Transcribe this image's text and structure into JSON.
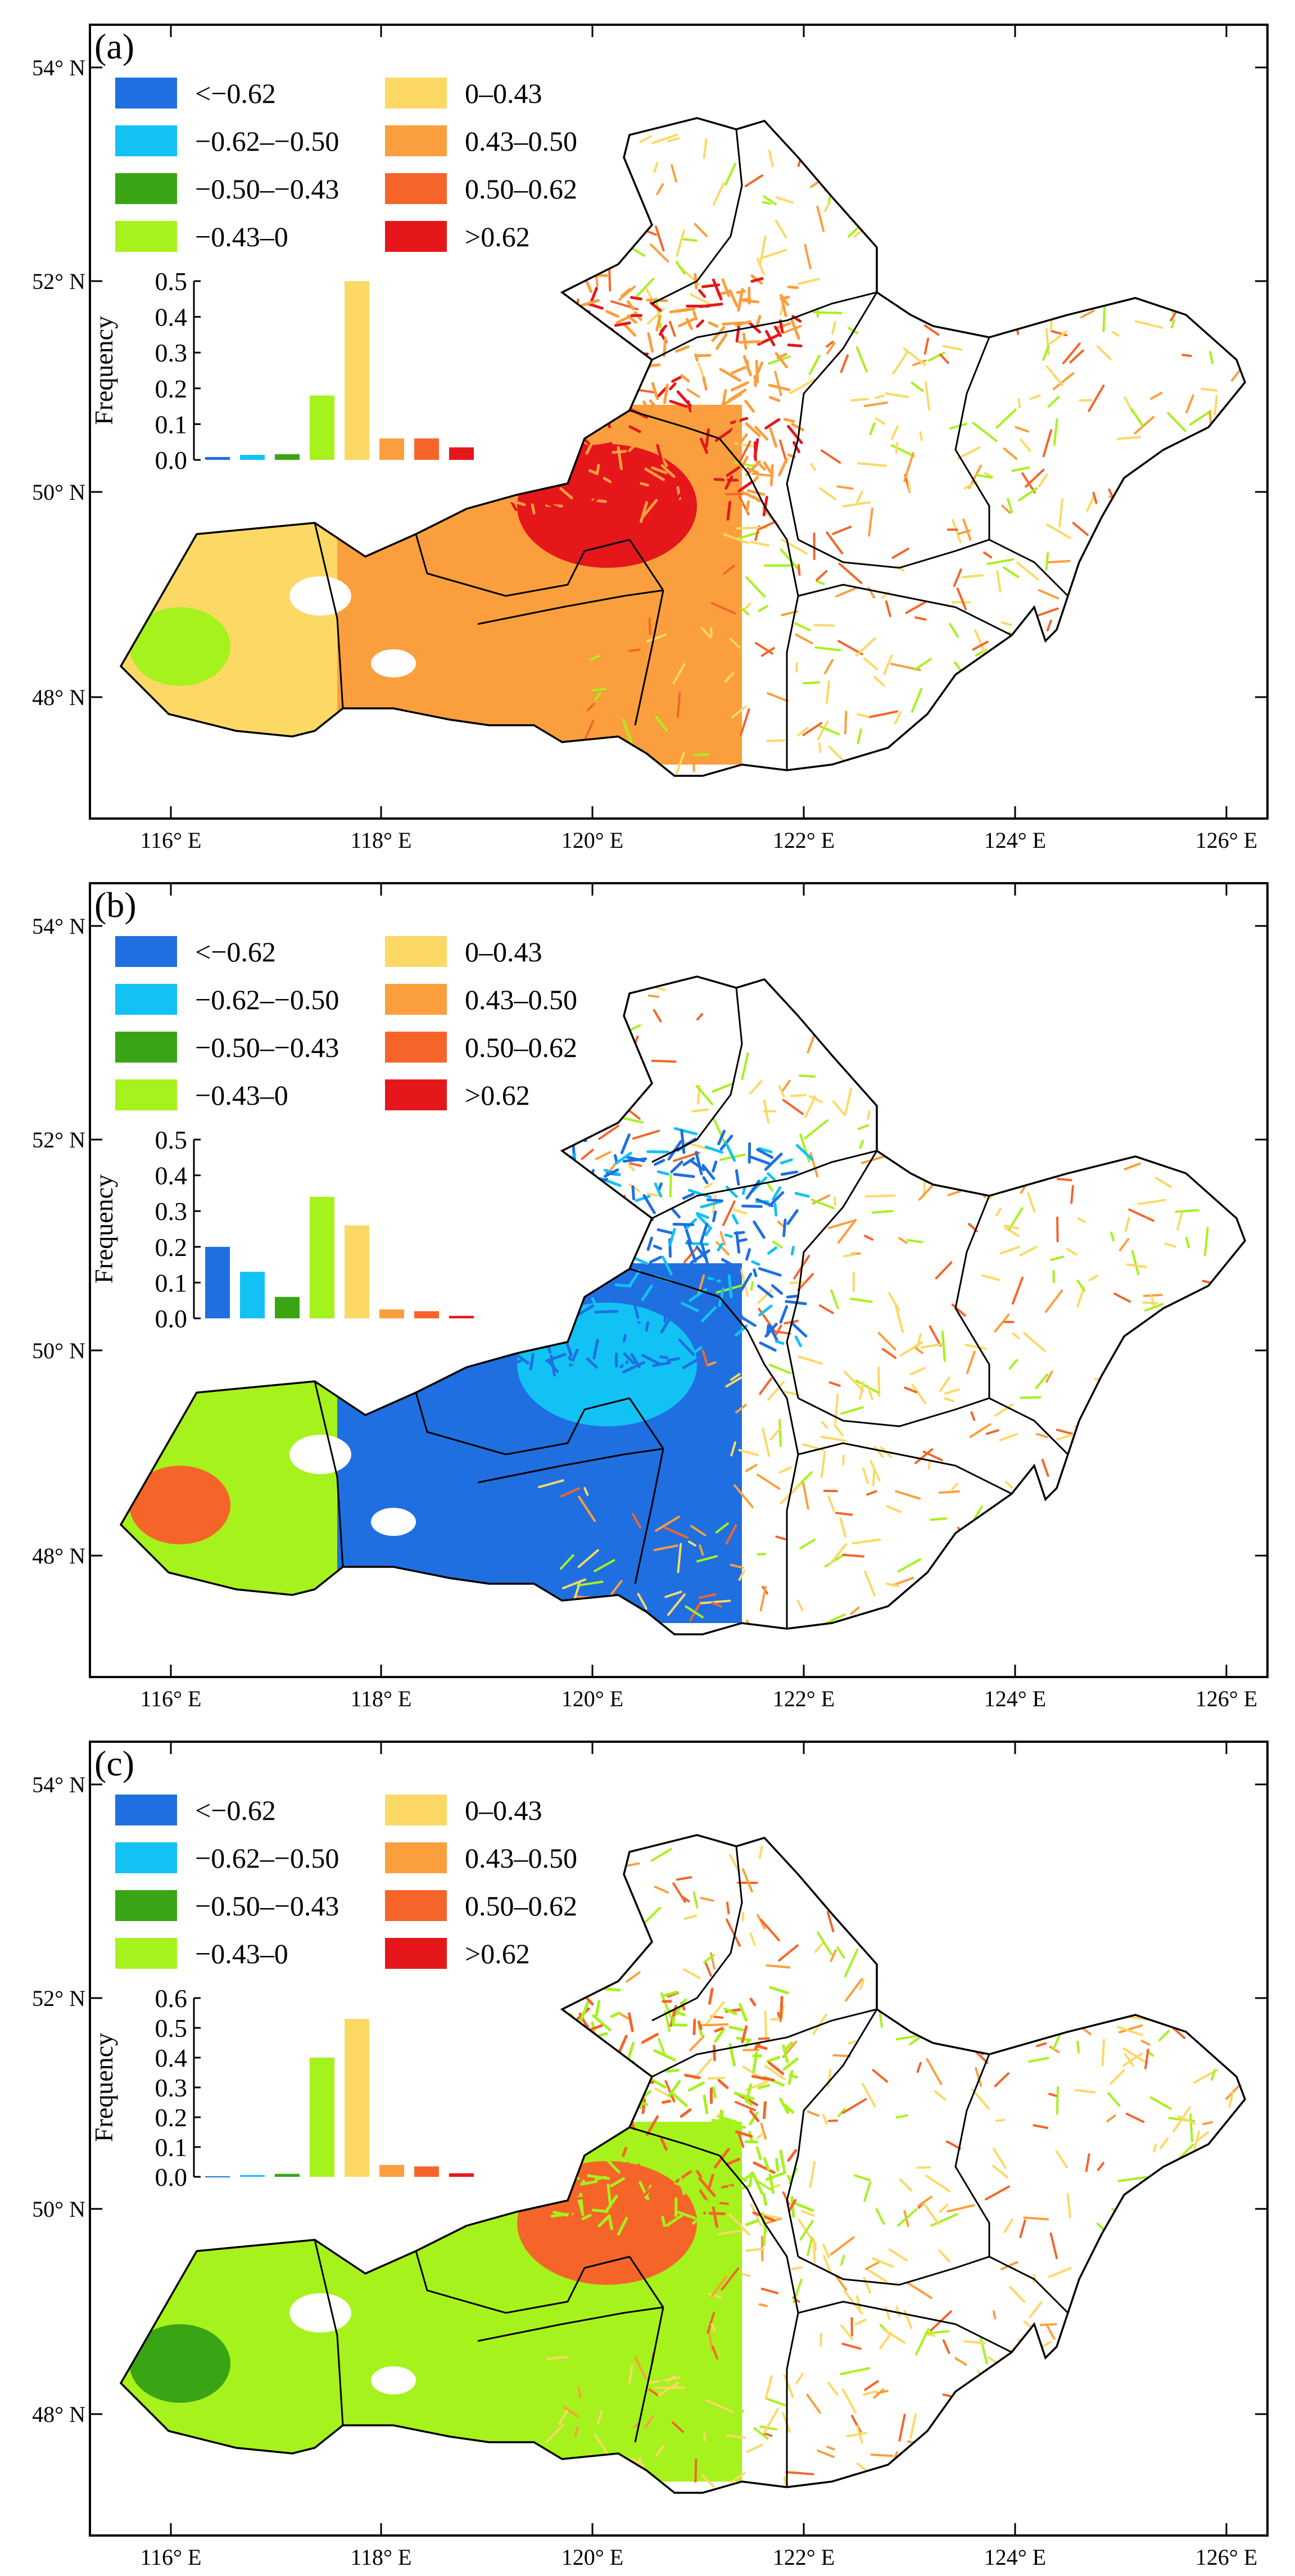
{
  "axes": {
    "lat_labels": [
      "54° N",
      "52° N",
      "50° N",
      "48° N"
    ],
    "lon_labels": [
      "116° E",
      "118° E",
      "120° E",
      "122° E",
      "124° E",
      "126° E"
    ]
  },
  "legend": {
    "items": [
      {
        "label": "<−0.62",
        "color": "#1f6fe0"
      },
      {
        "label": "−0.62–−0.50",
        "color": "#12c2f5"
      },
      {
        "label": "−0.50–−0.43",
        "color": "#3aa514"
      },
      {
        "label": "−0.43–0",
        "color": "#a6f21c"
      },
      {
        "label": "0–0.43",
        "color": "#fcd965"
      },
      {
        "label": "0.43–0.50",
        "color": "#fb9f3e"
      },
      {
        "label": "0.50–0.62",
        "color": "#f5652a"
      },
      {
        "label": ">0.62",
        "color": "#e5171b"
      }
    ]
  },
  "histogram": {
    "ylabel": "Frequency"
  },
  "panels": [
    {
      "label": "(a)",
      "yticks": [
        "0.0",
        "0.1",
        "0.2",
        "0.3",
        "0.4",
        "0.5"
      ],
      "ymax": 0.5,
      "values": [
        0.008,
        0.014,
        0.016,
        0.18,
        0.5,
        0.06,
        0.06,
        0.035
      ],
      "palette": [
        "#fcd965",
        "#fcd965",
        "#f5c460",
        "#fb9f3e",
        "#f5652a",
        "#a6f21c",
        "#fcd965",
        "#e5171b"
      ]
    },
    {
      "label": "(b)",
      "yticks": [
        "0.0",
        "0.1",
        "0.2",
        "0.3",
        "0.4",
        "0.5"
      ],
      "ymax": 0.5,
      "values": [
        0.2,
        0.13,
        0.06,
        0.34,
        0.26,
        0.025,
        0.02,
        0.007
      ],
      "palette": [
        "#1f6fe0",
        "#12c2f5",
        "#a6f21c",
        "#fcd965",
        "#fb9f3e",
        "#3aa514",
        "#f5652a",
        "#1f6fe0"
      ]
    },
    {
      "label": "(c)",
      "yticks": [
        "0.0",
        "0.1",
        "0.2",
        "0.3",
        "0.4",
        "0.5",
        "0.6"
      ],
      "ymax": 0.6,
      "values": [
        0.002,
        0.006,
        0.01,
        0.4,
        0.53,
        0.04,
        0.035,
        0.012
      ],
      "palette": [
        "#a6f21c",
        "#fcd965",
        "#fb9f3e",
        "#3aa514",
        "#12c2f5",
        "#f5652a",
        "#fcd965",
        "#e5171b"
      ]
    }
  ]
}
